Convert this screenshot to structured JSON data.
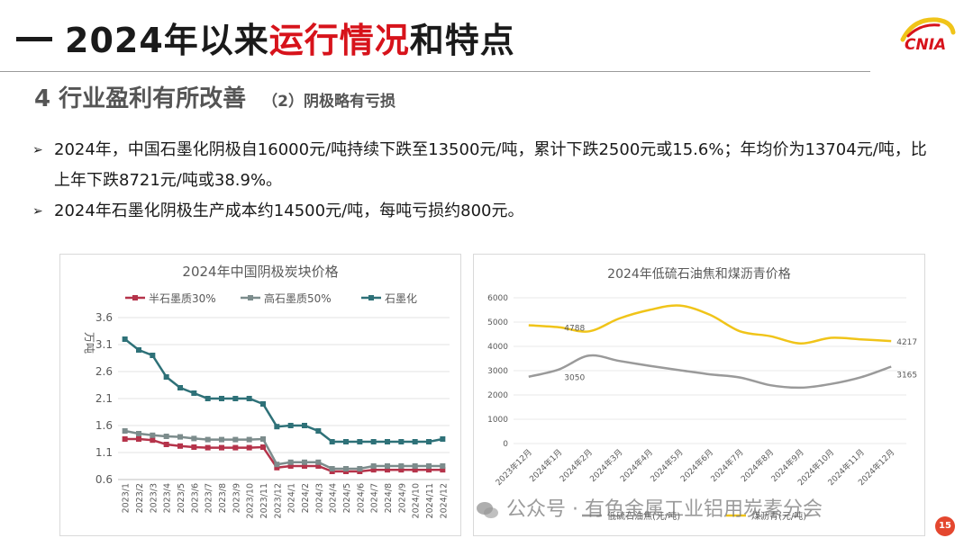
{
  "slide": {
    "title_prefix": "2024年以来",
    "title_red": "运行情况",
    "title_suffix": "和特点",
    "logo_text": "CNIA",
    "subtitle_main": "4 行业盈利有所改善",
    "subtitle_sub": "（2）阴极略有亏损",
    "bullets": [
      "2024年，中国石墨化阴极自16000元/吨持续下跌至13500元/吨，累计下跌2500元或15.6%；年均价为13704元/吨，比上年下跌8721元/吨或38.9%。",
      "2024年石墨化阴极生产成本约14500元/吨，每吨亏损约800元。"
    ],
    "watermark": "公众号 · 有色金属工业铝用炭素分会",
    "page_number": "15"
  },
  "colors": {
    "accent_red": "#d7131b",
    "series1": "#b5334a",
    "series2": "#7c8c8c",
    "series3": "#2e7178",
    "coke": "#9a9a9a",
    "pitch": "#f0c419"
  },
  "chart_data": [
    {
      "type": "line",
      "title": "2024年中国阴极炭块价格",
      "ylabel": "万吨",
      "ylim": [
        0.6,
        3.6
      ],
      "yticks": [
        "0.6",
        "1.1",
        "1.6",
        "2.1",
        "2.6",
        "3.1",
        "3.6"
      ],
      "legend_position": "top",
      "grid": true,
      "categories": [
        "2023/1",
        "2023/2",
        "2023/3",
        "2023/4",
        "2023/5",
        "2023/6",
        "2023/7",
        "2023/8",
        "2023/9",
        "2023/10",
        "2023/11",
        "2023/12",
        "2024/1",
        "2024/2",
        "2024/3",
        "2024/4",
        "2024/5",
        "2024/6",
        "2024/7",
        "2024/8",
        "2024/9",
        "2024/10",
        "2024/11",
        "2024/12"
      ],
      "series": [
        {
          "name": "半石墨质30%",
          "values": [
            1.35,
            1.35,
            1.33,
            1.25,
            1.22,
            1.2,
            1.19,
            1.19,
            1.19,
            1.19,
            1.2,
            0.82,
            0.85,
            0.85,
            0.85,
            0.75,
            0.75,
            0.75,
            0.78,
            0.78,
            0.78,
            0.78,
            0.78,
            0.78
          ]
        },
        {
          "name": "高石墨质50%",
          "values": [
            1.5,
            1.45,
            1.42,
            1.4,
            1.39,
            1.36,
            1.34,
            1.34,
            1.34,
            1.34,
            1.35,
            0.88,
            0.92,
            0.92,
            0.92,
            0.8,
            0.8,
            0.8,
            0.85,
            0.85,
            0.85,
            0.85,
            0.85,
            0.85
          ]
        },
        {
          "name": "石墨化",
          "values": [
            3.2,
            3.0,
            2.9,
            2.5,
            2.3,
            2.2,
            2.1,
            2.1,
            2.1,
            2.1,
            2.0,
            1.58,
            1.6,
            1.6,
            1.5,
            1.3,
            1.3,
            1.3,
            1.3,
            1.3,
            1.3,
            1.3,
            1.3,
            1.35
          ]
        }
      ]
    },
    {
      "type": "line",
      "title": "2024年低硫石油焦和煤沥青价格",
      "ylim": [
        0,
        6000
      ],
      "yticks": [
        "0",
        "1000",
        "2000",
        "3000",
        "4000",
        "5000",
        "6000"
      ],
      "grid": true,
      "legend_position": "bottom",
      "categories": [
        "2023年12月",
        "2024年1月",
        "2024年2月",
        "2024年3月",
        "2024年4月",
        "2024年5月",
        "2024年6月",
        "2024年7月",
        "2024年8月",
        "2024年9月",
        "2024年10月",
        "2024年11月",
        "2024年12月"
      ],
      "series": [
        {
          "name": "低硫石油焦(元/吨)",
          "values": [
            2750,
            3050,
            3620,
            3400,
            3200,
            3020,
            2850,
            2720,
            2400,
            2300,
            2450,
            2730,
            3165
          ]
        },
        {
          "name": "煤沥青(元/吨)",
          "values": [
            4870,
            4788,
            4620,
            5150,
            5500,
            5680,
            5300,
            4620,
            4420,
            4120,
            4350,
            4290,
            4217
          ]
        }
      ],
      "data_labels": [
        {
          "series": 0,
          "index": 1,
          "text": "3050"
        },
        {
          "series": 0,
          "index": 12,
          "text": "3165"
        },
        {
          "series": 1,
          "index": 1,
          "text": "4788"
        },
        {
          "series": 1,
          "index": 12,
          "text": "4217"
        }
      ]
    }
  ]
}
